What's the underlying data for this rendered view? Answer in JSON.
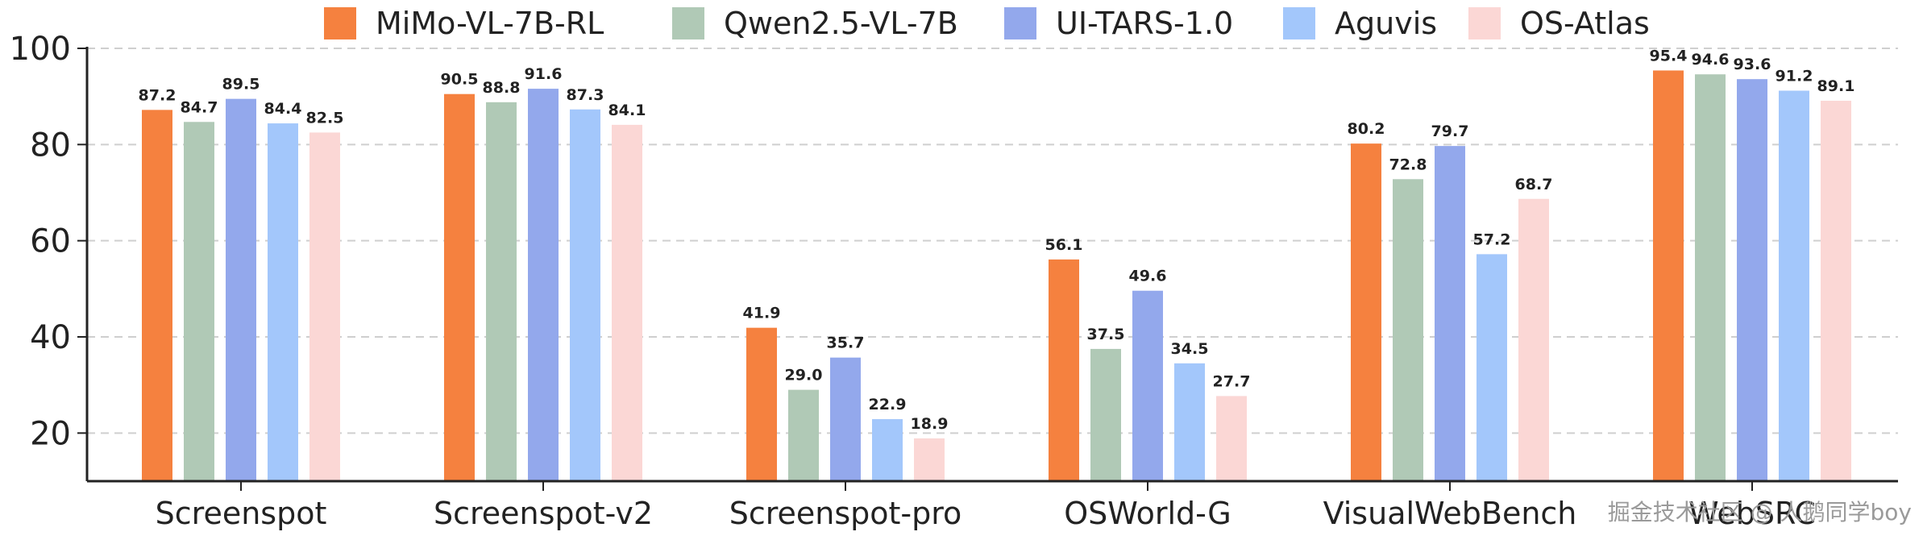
{
  "chart_data": {
    "type": "bar",
    "categories": [
      "Screenspot",
      "Screenspot-v2",
      "Screenspot-pro",
      "OSWorld-G",
      "VisualWebBench",
      "WebSRC"
    ],
    "series": [
      {
        "name": "MiMo-VL-7B-RL",
        "color": "#F5813F",
        "values": [
          87.2,
          90.5,
          41.9,
          56.1,
          80.2,
          95.4
        ]
      },
      {
        "name": "Qwen2.5-VL-7B",
        "color": "#B0C9B6",
        "values": [
          84.7,
          88.8,
          29.0,
          37.5,
          72.8,
          94.6
        ]
      },
      {
        "name": "UI-TARS-1.0",
        "color": "#93A8EC",
        "values": [
          89.5,
          91.6,
          35.7,
          49.6,
          79.7,
          93.6
        ]
      },
      {
        "name": "Aguvis",
        "color": "#A3C7FB",
        "values": [
          84.4,
          87.3,
          22.9,
          34.5,
          57.2,
          91.2
        ]
      },
      {
        "name": "OS-Atlas",
        "color": "#FBD7D5",
        "values": [
          82.5,
          84.1,
          18.9,
          27.7,
          68.7,
          89.1
        ]
      }
    ],
    "ylim": [
      10,
      100
    ],
    "yticks": [
      20,
      40,
      60,
      80,
      100
    ],
    "grid": true,
    "legend_position": "top"
  },
  "watermark": "掘金技术社区 @ 人鹅同学boy"
}
